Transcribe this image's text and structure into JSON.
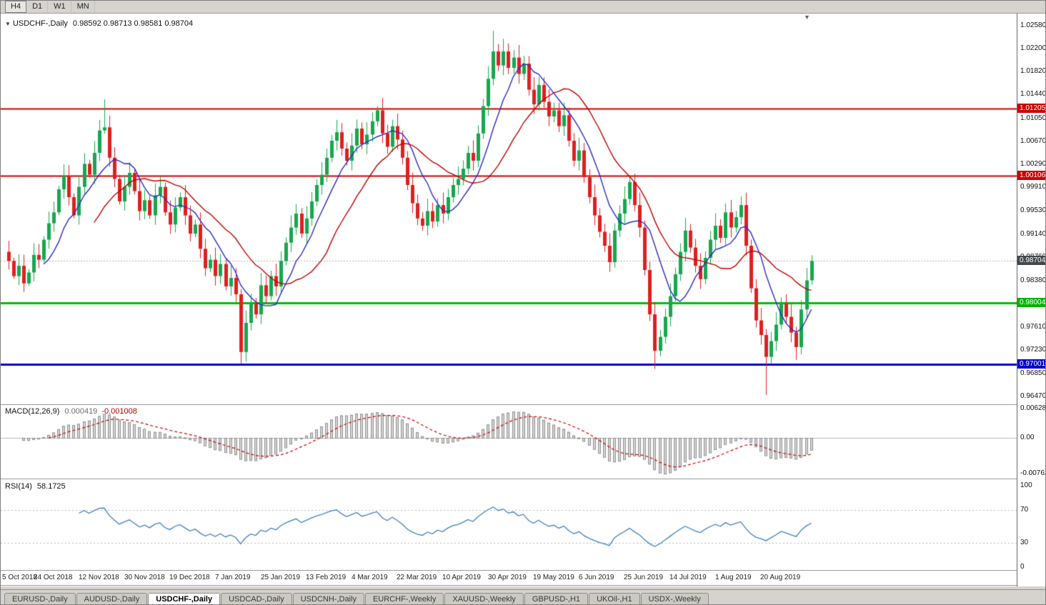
{
  "toolbar": {
    "timeframes": [
      {
        "label": "H4",
        "active": true
      },
      {
        "label": "D1",
        "active": false
      },
      {
        "label": "W1",
        "active": false
      },
      {
        "label": "MN",
        "active": false
      }
    ]
  },
  "chart_header": {
    "symbol": "USDCHF-,Daily",
    "ohlc_text": "0.98592 0.98713 0.98581 0.98704"
  },
  "price_axis": {
    "badges": [
      {
        "text": "1.01205",
        "bg": "#cc0000"
      },
      {
        "text": "1.00106",
        "bg": "#cc0000"
      },
      {
        "text": "0.98704",
        "bg": "#43484d"
      },
      {
        "text": "0.98004",
        "bg": "#00b400"
      },
      {
        "text": "0.97001",
        "bg": "#0000cc"
      }
    ]
  },
  "colors": {
    "up": "#17a74e",
    "down": "#e01f1f",
    "ma_fast": "#2a2ac8",
    "ma_slow": "#c00000",
    "macd_hist_fill": "#d6d6d6",
    "macd_hist_stroke": "#8f8f8f",
    "macd_signal": "#cc0000",
    "rsi_line": "#3f7fc1",
    "current_price_line": "#b0b0b0",
    "level_red": "#cc0000",
    "level_green": "#00bf00",
    "level_blue": "#0000cc"
  },
  "tabs": {
    "items": [
      "EURUSD-,Daily",
      "AUDUSD-,Daily",
      "USDCHF-,Daily",
      "USDCAD-,Daily",
      "USDCNH-,Daily",
      "EURCHF-,Weekly",
      "XAUUSD-,Weekly",
      "GBPUSD-,H1",
      "UKOil-,H1",
      "USDX-,Weekly"
    ],
    "active_index": 2
  },
  "chart_data": {
    "type": "candlestick",
    "symbol": "USDCHF-,Daily",
    "ohlc_display": {
      "open": "0.98592",
      "high": "0.98713",
      "low": "0.98581",
      "close": "0.98704"
    },
    "current_price": 0.98704,
    "y_range": [
      0.9629,
      1.02633
    ],
    "y_ticks": [
      "1.02580",
      "1.02200",
      "1.01820",
      "1.01440",
      "1.01050",
      "1.00670",
      "1.00290",
      "0.99910",
      "0.99530",
      "0.99140",
      "0.98760",
      "0.98380",
      "0.98000",
      "0.97610",
      "0.97230",
      "0.96850",
      "0.96470"
    ],
    "x_labels": [
      "5 Oct 2018",
      "24 Oct 2018",
      "12 Nov 2018",
      "30 Nov 2018",
      "19 Dec 2018",
      "7 Jan 2019",
      "25 Jan 2019",
      "13 Feb 2019",
      "4 Mar 2019",
      "22 Mar 2019",
      "10 Apr 2019",
      "30 Apr 2019",
      "19 May 2019",
      "6 Jun 2019",
      "25 Jun 2019",
      "14 Jul 2019",
      "1 Aug 2019",
      "20 Aug 2019"
    ],
    "levels": [
      {
        "value": 1.01205,
        "color": "#cc0000",
        "width": 2
      },
      {
        "value": 1.00106,
        "color": "#cc0000",
        "width": 2
      },
      {
        "value": 0.98004,
        "color": "#00bf00",
        "width": 3
      },
      {
        "value": 0.97001,
        "color": "#0000cc",
        "width": 3
      }
    ],
    "first_open": 0.9885,
    "closes": [
      0.987,
      0.9845,
      0.9862,
      0.9833,
      0.9851,
      0.988,
      0.9872,
      0.9905,
      0.9932,
      0.995,
      0.9988,
      1.001,
      0.9975,
      0.9945,
      0.9992,
      1.003,
      1.0012,
      1.0048,
      1.0085,
      1.009,
      1.004,
      1.0005,
      0.9968,
      0.9992,
      1.0015,
      0.9985,
      0.9952,
      0.997,
      0.9945,
      0.9978,
      0.9992,
      0.995,
      0.993,
      0.9958,
      0.9975,
      0.9945,
      0.9915,
      0.993,
      0.989,
      0.9858,
      0.9872,
      0.9845,
      0.9865,
      0.9828,
      0.9842,
      0.9815,
      0.972,
      0.9768,
      0.98,
      0.9782,
      0.983,
      0.9812,
      0.9845,
      0.9828,
      0.987,
      0.99,
      0.9925,
      0.9948,
      0.9915,
      0.994,
      0.9968,
      0.9995,
      1.0012,
      1.004,
      1.0068,
      1.0082,
      1.0055,
      1.0035,
      1.006,
      1.0088,
      1.0062,
      1.0078,
      1.01,
      1.0118,
      1.008,
      1.0058,
      1.0092,
      1.007,
      1.004,
      0.9995,
      0.9965,
      0.994,
      0.9928,
      0.9952,
      0.9935,
      0.9962,
      0.9948,
      0.9975,
      0.9995,
      1.0005,
      1.0022,
      1.0048,
      1.0035,
      1.008,
      1.0125,
      1.017,
      1.0215,
      1.0192,
      1.0215,
      1.0188,
      1.0205,
      1.0178,
      1.0195,
      1.0152,
      1.0128,
      1.016,
      1.0132,
      1.0108,
      1.0118,
      1.0092,
      1.011,
      1.0068,
      1.0035,
      1.0052,
      1.0008,
      0.9975,
      0.9945,
      0.9918,
      0.9895,
      0.9868,
      0.992,
      0.9948,
      0.9972,
      1.0,
      0.9962,
      0.9925,
      0.9855,
      0.9782,
      0.9722,
      0.9745,
      0.9778,
      0.9812,
      0.9848,
      0.9885,
      0.992,
      0.9892,
      0.9862,
      0.984,
      0.9875,
      0.9905,
      0.9928,
      0.9908,
      0.995,
      0.9925,
      0.9942,
      0.9962,
      0.9895,
      0.9825,
      0.9772,
      0.9748,
      0.9712,
      0.9738,
      0.9765,
      0.98,
      0.9778,
      0.9752,
      0.9728,
      0.979,
      0.9838,
      0.987
    ],
    "wick_overrides": {
      "19": {
        "h": 1.0136
      },
      "46": {
        "l": 0.9701
      },
      "73": {
        "h": 1.0125
      },
      "96": {
        "h": 1.0249
      },
      "123": {
        "h": 1.0011
      },
      "128": {
        "l": 0.9692
      },
      "145": {
        "h": 0.9976
      },
      "150": {
        "l": 0.9649
      },
      "156": {
        "l": 0.9707
      }
    },
    "indicators": {
      "macd": {
        "label": "MACD(12,26,9)",
        "value": "0.000419",
        "signal_value": "-0.001008",
        "y_ticks": [
          "0.006286",
          "0.00",
          "-0.00762"
        ]
      },
      "rsi": {
        "label": "RSI(14)",
        "value": "58.1725",
        "y_ticks": [
          "100",
          "70",
          "30",
          "0"
        ],
        "guide_levels": [
          70,
          30
        ]
      }
    }
  }
}
